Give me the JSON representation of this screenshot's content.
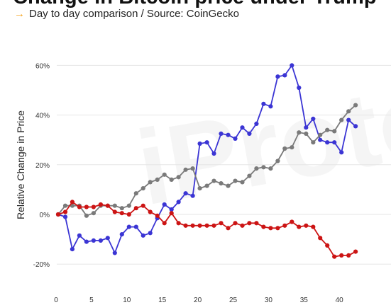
{
  "header": {
    "title": "Change in Bitcoin price under Trump",
    "subtitle": "Day to day comparison / Source: CoinGecko",
    "arrow": "→"
  },
  "watermark_text": "iProto",
  "chart_data": {
    "type": "line",
    "title": "Change in Bitcoin price under Trump",
    "subtitle": "Day to day comparison / Source: CoinGecko",
    "xlabel": "",
    "ylabel": "Relative Change in Price",
    "xlim": [
      0,
      43
    ],
    "ylim": [
      -25,
      67
    ],
    "xticks": [
      0,
      5,
      10,
      15,
      20,
      25,
      30,
      35,
      40
    ],
    "yticks": [
      -20,
      0,
      20,
      40,
      60
    ],
    "ytick_labels": [
      "-20%",
      "0%",
      "20%",
      "40%",
      "60%"
    ],
    "grid": "horizontal",
    "legend": "none",
    "x": [
      1,
      2,
      3,
      4,
      5,
      6,
      7,
      8,
      9,
      10,
      11,
      12,
      13,
      14,
      15,
      16,
      17,
      18,
      19,
      20,
      21,
      22,
      23,
      24,
      25,
      26,
      27,
      28,
      29,
      30,
      31,
      32,
      33,
      34,
      35,
      36,
      37,
      38,
      39,
      40,
      41,
      42,
      43
    ],
    "series": [
      {
        "color": "#3b35d4",
        "values": [
          0,
          -1,
          -14,
          -8.5,
          -11,
          -10.5,
          -10.5,
          -9.5,
          -15.5,
          -8,
          -5,
          -5,
          -8.5,
          -7.5,
          -1.5,
          4,
          2,
          5,
          8.5,
          7.5,
          28.5,
          29,
          24.5,
          32.5,
          32,
          30.5,
          35,
          32.5,
          36.5,
          44.5,
          43.5,
          55.5,
          56,
          60,
          51,
          35,
          38.5,
          30,
          29,
          29,
          25,
          38,
          35.5
        ]
      },
      {
        "color": "#7a7a7a",
        "values": [
          0,
          3.5,
          3.5,
          3.5,
          -0.5,
          0.5,
          3.5,
          3.5,
          3.5,
          2.5,
          3.5,
          8.5,
          10.5,
          13,
          14,
          16,
          14,
          15,
          18,
          18.5,
          10.5,
          11.5,
          13.5,
          12.5,
          11.5,
          13.5,
          13,
          15.5,
          18.5,
          19,
          18.5,
          21.5,
          26.5,
          27,
          33,
          32.5,
          29,
          32,
          34,
          33.5,
          38,
          41.5,
          44
        ]
      },
      {
        "color": "#cc1414",
        "values": [
          0,
          1,
          5,
          3,
          3,
          3,
          4,
          3.5,
          1,
          0.5,
          0,
          2.5,
          3.5,
          1,
          -0.5,
          -3.5,
          0.5,
          -3.5,
          -4.5,
          -4.5,
          -4.5,
          -4.5,
          -4.5,
          -3.5,
          -5.5,
          -3.5,
          -4.5,
          -3.5,
          -3.5,
          -5,
          -5.5,
          -5.5,
          -4.5,
          -3,
          -5,
          -4.5,
          -5,
          -9.5,
          -12.5,
          -17,
          -16.5,
          -16.5,
          -15
        ]
      }
    ]
  }
}
